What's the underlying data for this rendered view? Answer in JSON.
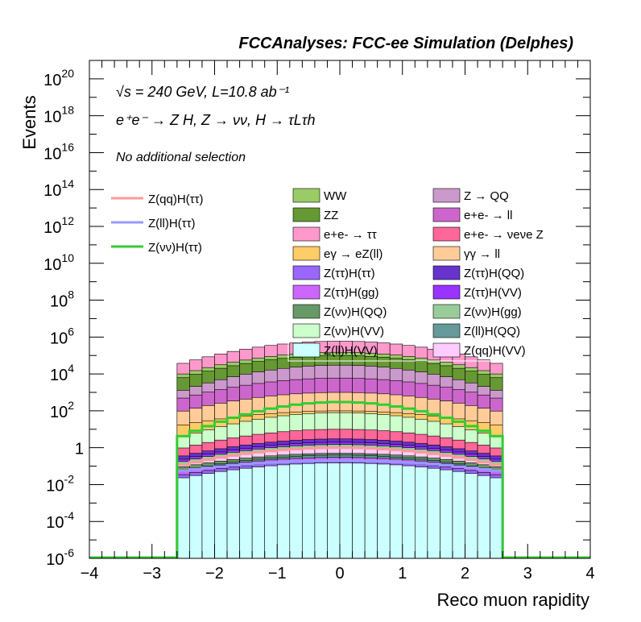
{
  "header": "FCCAnalyses: FCC-ee Simulation (Delphes)",
  "annotations": [
    "√s = 240 GeV, L=10.8 ab⁻¹",
    "e⁺e⁻ → Z H, Z → νν, H → τLτh",
    "No additional selection"
  ],
  "chart_data": {
    "type": "histogram",
    "title": "",
    "xlabel": "Reco muon rapidity",
    "ylabel": "Events",
    "xlim": [
      -4,
      4
    ],
    "ylim": [
      1e-06,
      1e+21
    ],
    "yscale": "log",
    "x_ticks": [
      "−4",
      "−3",
      "−2",
      "−1",
      "0",
      "1",
      "2",
      "3",
      "4"
    ],
    "y_ticks": [
      {
        "base": "10",
        "exp": "20",
        "value": 1e+20
      },
      {
        "base": "10",
        "exp": "18",
        "value": 1e+18
      },
      {
        "base": "10",
        "exp": "16",
        "value": 1e+16
      },
      {
        "base": "10",
        "exp": "14",
        "value": 100000000000000.0
      },
      {
        "base": "10",
        "exp": "12",
        "value": 1000000000000.0
      },
      {
        "base": "10",
        "exp": "10",
        "value": 10000000000.0
      },
      {
        "base": "10",
        "exp": "8",
        "value": 100000000.0
      },
      {
        "base": "10",
        "exp": "6",
        "value": 1000000.0
      },
      {
        "base": "10",
        "exp": "4",
        "value": 10000.0
      },
      {
        "base": "10",
        "exp": "2",
        "value": 100.0
      },
      {
        "base": "1",
        "exp": "",
        "value": 1
      },
      {
        "base": "10",
        "exp": "-2",
        "value": 0.01
      },
      {
        "base": "10",
        "exp": "-4",
        "value": 0.0001
      },
      {
        "base": "10",
        "exp": "-6",
        "value": 1e-06
      }
    ],
    "bin_range": [
      -2.6,
      2.6
    ],
    "n_bins": 26,
    "stack_levels": [
      {
        "name": "WW",
        "color": "#99cc66",
        "top_center": 150000.0,
        "top_edge": 8000.0
      },
      {
        "name": "ZZ",
        "color": "#669933",
        "top_center": 100000.0,
        "top_edge": 5000.0
      },
      {
        "name": "e+e- → ττ",
        "color": "#ff99cc",
        "top_center": 600000.0,
        "top_edge": 30000.0
      },
      {
        "name": "eγ → eZ(ll)",
        "color": "#ffcc66",
        "top_center": 100.0,
        "top_edge": 15.0
      },
      {
        "name": "Z(ττ)H(ττ)",
        "color": "#9966ff",
        "top_center": 0.2,
        "top_edge": 0.03
      },
      {
        "name": "Z(ττ)H(gg)",
        "color": "#cc66ff",
        "top_center": 0.3,
        "top_edge": 0.05
      },
      {
        "name": "Z(νν)H(QQ)",
        "color": "#669966",
        "top_center": 0.5,
        "top_edge": 0.08
      },
      {
        "name": "Z(νν)H(VV)",
        "color": "#ccffcc",
        "top_center": 80.0,
        "top_edge": 3.0
      },
      {
        "name": "Z(ll)H(VV)",
        "color": "#ccffff",
        "top_center": 0.15,
        "top_edge": 0.02
      },
      {
        "name": "Z → QQ",
        "color": "#cc99cc",
        "top_center": 30000.0,
        "top_edge": 1000.0
      },
      {
        "name": "e+e- → ll",
        "color": "#cc66cc",
        "top_center": 6000.0,
        "top_edge": 400.0
      },
      {
        "name": "e+e- → νeνe Z",
        "color": "#ff6699",
        "top_center": 10.0,
        "top_edge": 0.8
      },
      {
        "name": "γγ → ll",
        "color": "#ffcc99",
        "top_center": 1000.0,
        "top_edge": 80.0
      },
      {
        "name": "Z(ττ)H(QQ)",
        "color": "#6633cc",
        "top_center": 3.0,
        "top_edge": 0.3
      },
      {
        "name": "Z(ττ)H(VV)",
        "color": "#9933ff",
        "top_center": 2.0,
        "top_edge": 0.2
      },
      {
        "name": "Z(νν)H(gg)",
        "color": "#99cc99",
        "top_center": 1.5,
        "top_edge": 0.15
      },
      {
        "name": "Z(ll)H(QQ)",
        "color": "#669999",
        "top_center": 0.4,
        "top_edge": 0.05
      },
      {
        "name": "Z(qq)H(VV)",
        "color": "#ffccff",
        "top_center": 1.0,
        "top_edge": 0.1
      }
    ],
    "signal_lines": [
      {
        "name": "Z(qq)H(ττ)",
        "color": "#ff9999",
        "center": 1.0,
        "edge": 0.1
      },
      {
        "name": "Z(ll)H(ττ)",
        "color": "#9999ff",
        "center": 0.2,
        "edge": 0.05
      },
      {
        "name": "Z(νν)H(ττ)",
        "color": "#33cc33",
        "center": 300.0,
        "edge": 3.0
      }
    ],
    "legend": {
      "signals": [
        "Z(qq)H(ττ)",
        "Z(ll)H(ττ)",
        "Z(νν)H(ττ)"
      ],
      "backgrounds": [
        "WW",
        "Z → QQ",
        "ZZ",
        "e+e- → ll",
        "e+e- → ττ",
        "e+e- → νeνe Z",
        "eγ → eZ(ll)",
        "γγ → ll",
        "Z(ττ)H(ττ)",
        "Z(ττ)H(QQ)",
        "Z(ττ)H(gg)",
        "Z(ττ)H(VV)",
        "Z(νν)H(QQ)",
        "Z(νν)H(gg)",
        "Z(νν)H(VV)",
        "Z(ll)H(QQ)",
        "Z(ll)H(VV)",
        "Z(qq)H(VV)"
      ],
      "placement": "upper-right"
    },
    "grid": false
  }
}
